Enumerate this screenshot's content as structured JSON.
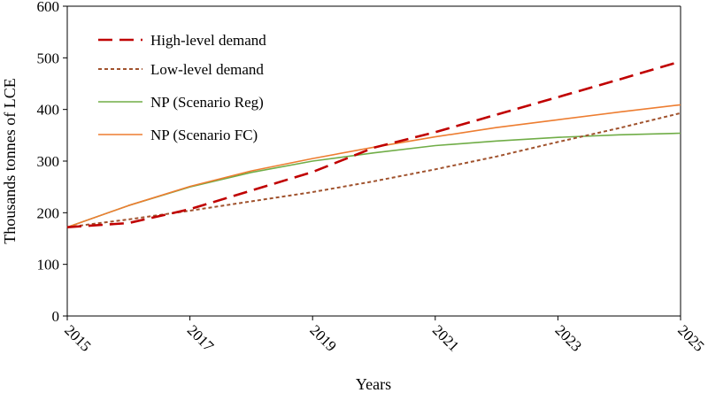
{
  "chart_data": {
    "type": "line",
    "title": "",
    "xlabel": "Years",
    "ylabel": "Thousands tonnes of LCE",
    "xlim": [
      2015,
      2025
    ],
    "ylim": [
      0,
      600
    ],
    "yticks": [
      "0",
      "100",
      "200",
      "300",
      "400",
      "500",
      "600"
    ],
    "xticks": [
      "2015",
      "2017",
      "2019",
      "2021",
      "2023",
      "2025"
    ],
    "grid": false,
    "legend_position": "top-left",
    "series": [
      {
        "name": "High-level demand",
        "color": "#C00000",
        "style": "long-dash",
        "x": [
          2015,
          2016,
          2017,
          2018,
          2019,
          2020,
          2021,
          2022,
          2023,
          2024,
          2025
        ],
        "values": [
          172,
          180,
          207,
          243,
          279,
          326,
          356,
          390,
          424,
          458,
          493
        ]
      },
      {
        "name": "Low-level demand",
        "color": "#A0522D",
        "style": "short-dash",
        "x": [
          2015,
          2016,
          2017,
          2018,
          2019,
          2020,
          2021,
          2022,
          2023,
          2024,
          2025
        ],
        "values": [
          172,
          187,
          204,
          222,
          240,
          261,
          284,
          309,
          337,
          364,
          393
        ]
      },
      {
        "name": "NP (Scenario Reg)",
        "color": "#70AD47",
        "style": "solid",
        "x": [
          2015,
          2016,
          2017,
          2018,
          2019,
          2020,
          2021,
          2022,
          2023,
          2024,
          2025
        ],
        "values": [
          172,
          214,
          250,
          278,
          300,
          316,
          330,
          339,
          346,
          351,
          354
        ]
      },
      {
        "name": "NP (Scenario FC)",
        "color": "#ED7D31",
        "style": "solid",
        "x": [
          2015,
          2016,
          2017,
          2018,
          2019,
          2020,
          2021,
          2022,
          2023,
          2024,
          2025
        ],
        "values": [
          172,
          214,
          251,
          281,
          305,
          327,
          347,
          365,
          380,
          395,
          409
        ]
      }
    ]
  }
}
